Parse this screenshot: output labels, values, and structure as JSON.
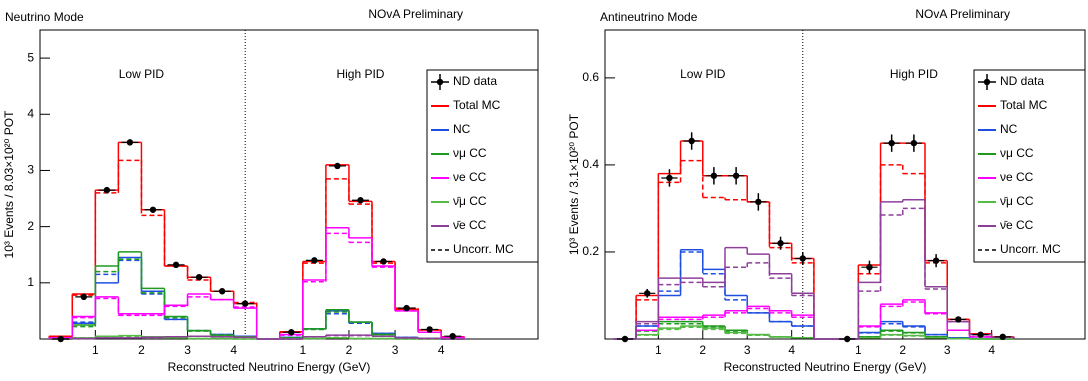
{
  "chart_data": [
    {
      "type": "histogram",
      "title": "Neutrino Mode",
      "annotation": "NOvA Preliminary",
      "region_labels": [
        "Low PID",
        "High PID"
      ],
      "x_label": "Reconstructed Neutrino Energy (GeV)",
      "y_label": "10³ Events / 8.03×10²⁰ POT",
      "bins": [
        0,
        0.5,
        1,
        1.5,
        2,
        2.5,
        3,
        3.5,
        4,
        4.5,
        5,
        5.5,
        6,
        6.5,
        7,
        7.5,
        8,
        8.5,
        9
      ],
      "xlim": [
        -0.2,
        10.6
      ],
      "xticks": [
        1,
        2,
        3,
        4,
        {
          "value": 5.5,
          "label": "1"
        },
        {
          "value": 6.5,
          "label": "2"
        },
        {
          "value": 7.5,
          "label": "3"
        },
        {
          "value": 8.5,
          "label": "4"
        }
      ],
      "ylim": [
        0,
        5.5
      ],
      "yticks": [
        1,
        2,
        3,
        4,
        5
      ],
      "legend": "right",
      "uncorrected_name": "Uncorr. MC",
      "series": [
        {
          "name": "ND data",
          "color": "#000000",
          "style": "points",
          "values": [
            0,
            0.75,
            2.65,
            3.5,
            2.3,
            1.32,
            1.1,
            0.85,
            0.63,
            null,
            0.12,
            1.4,
            3.08,
            2.47,
            1.38,
            0.55,
            0.17,
            0.05
          ]
        },
        {
          "name": "Total MC",
          "color": "#ff0000",
          "values": [
            0.05,
            0.8,
            2.65,
            3.5,
            2.3,
            1.3,
            1.1,
            0.85,
            0.63,
            0,
            0.13,
            1.38,
            3.1,
            2.45,
            1.38,
            0.53,
            0.16,
            0.04
          ],
          "uncorrected": [
            0.05,
            0.78,
            2.6,
            3.18,
            2.2,
            1.3,
            1.05,
            0.85,
            0.65,
            0,
            0.12,
            1.35,
            2.85,
            2.4,
            1.35,
            0.55,
            0.16,
            0.04
          ]
        },
        {
          "name": "NC",
          "color": "#1f4fe0",
          "values": [
            0.02,
            0.28,
            1.0,
            1.45,
            0.85,
            0.35,
            0.15,
            0.08,
            0.05,
            0,
            0.03,
            0.18,
            0.5,
            0.3,
            0.1,
            0.03,
            0.01,
            0
          ],
          "uncorrected": [
            0.02,
            0.3,
            1.15,
            1.4,
            0.8,
            0.35,
            0.15,
            0.08,
            0.05,
            0,
            0.03,
            0.18,
            0.45,
            0.28,
            0.1,
            0.03,
            0.01,
            0
          ]
        },
        {
          "name": "νμ CC",
          "color": "#1e9a1e",
          "values": [
            0.01,
            0.25,
            1.3,
            1.55,
            0.9,
            0.4,
            0.15,
            0.07,
            0.04,
            0,
            0.02,
            0.18,
            0.52,
            0.3,
            0.08,
            0.02,
            0.01,
            0
          ],
          "uncorrected": [
            0.01,
            0.22,
            1.2,
            1.42,
            0.82,
            0.38,
            0.14,
            0.07,
            0.04,
            0,
            0.02,
            0.17,
            0.48,
            0.3,
            0.08,
            0.02,
            0.01,
            0
          ]
        },
        {
          "name": "νe CC",
          "color": "#ff00ff",
          "values": [
            0.02,
            0.4,
            0.75,
            0.45,
            0.45,
            0.6,
            0.8,
            0.7,
            0.55,
            0,
            0.08,
            1.05,
            1.98,
            1.8,
            1.3,
            0.5,
            0.12,
            0.03
          ],
          "uncorrected": [
            0.02,
            0.38,
            0.72,
            0.42,
            0.42,
            0.58,
            0.75,
            0.7,
            0.57,
            0,
            0.07,
            1.02,
            1.88,
            1.72,
            1.28,
            0.5,
            0.12,
            0.03
          ]
        },
        {
          "name": "ν̄μ CC",
          "color": "#55bb44",
          "values": [
            0,
            0.02,
            0.05,
            0.06,
            0.04,
            0.02,
            0.01,
            0.01,
            0,
            0,
            0,
            0.01,
            0.02,
            0.01,
            0.01,
            0,
            0,
            0
          ],
          "uncorrected": [
            0,
            0.02,
            0.05,
            0.05,
            0.04,
            0.02,
            0.01,
            0.01,
            0,
            0,
            0,
            0.01,
            0.02,
            0.01,
            0.01,
            0,
            0,
            0
          ]
        },
        {
          "name": "ν̄e CC",
          "color": "#8e3f9a",
          "values": [
            0,
            0.01,
            0.02,
            0.02,
            0.03,
            0.04,
            0.05,
            0.04,
            0.03,
            0,
            0,
            0.04,
            0.07,
            0.07,
            0.05,
            0.02,
            0.01,
            0
          ],
          "uncorrected": [
            0,
            0.01,
            0.02,
            0.02,
            0.03,
            0.04,
            0.05,
            0.04,
            0.03,
            0,
            0,
            0.04,
            0.06,
            0.06,
            0.05,
            0.02,
            0.01,
            0
          ]
        }
      ]
    },
    {
      "type": "histogram",
      "title": "Antineutrino Mode",
      "annotation": "NOvA Preliminary",
      "region_labels": [
        "Low PID",
        "High PID"
      ],
      "x_label": "Reconstructed Neutrino Energy (GeV)",
      "y_label": "10³ Events / 3.1×10²⁰ POT",
      "bins": [
        0,
        0.5,
        1,
        1.5,
        2,
        2.5,
        3,
        3.5,
        4,
        4.5,
        5,
        5.5,
        6,
        6.5,
        7,
        7.5,
        8,
        8.5,
        9
      ],
      "xlim": [
        -0.2,
        10.6
      ],
      "xticks": [
        1,
        2,
        3,
        4,
        {
          "value": 5.5,
          "label": "1"
        },
        {
          "value": 6.5,
          "label": "2"
        },
        {
          "value": 7.5,
          "label": "3"
        },
        {
          "value": 8.5,
          "label": "4"
        }
      ],
      "ylim": [
        0,
        0.71
      ],
      "yticks": [
        0.2,
        0.4,
        0.6
      ],
      "legend": "right",
      "uncorrected_name": "Uncorr. MC",
      "series": [
        {
          "name": "ND data",
          "color": "#000000",
          "style": "points",
          "values": [
            0,
            0.105,
            0.37,
            0.455,
            0.375,
            0.375,
            0.315,
            0.22,
            0.185,
            null,
            0,
            0.165,
            0.45,
            0.45,
            0.18,
            0.045,
            0.01,
            0.005
          ],
          "errors": [
            0,
            0.01,
            0.02,
            0.02,
            0.02,
            0.02,
            0.02,
            0.015,
            0.015,
            null,
            0,
            0.015,
            0.02,
            0.02,
            0.015,
            0.005,
            0.002,
            0.001
          ]
        },
        {
          "name": "Total MC",
          "color": "#ff0000",
          "values": [
            0,
            0.1,
            0.38,
            0.455,
            0.375,
            0.375,
            0.315,
            0.22,
            0.185,
            0,
            0,
            0.17,
            0.45,
            0.45,
            0.18,
            0.045,
            0.012,
            0.005
          ],
          "uncorrected": [
            0,
            0.09,
            0.36,
            0.41,
            0.325,
            0.32,
            0.315,
            0.21,
            0.175,
            0,
            0,
            0.15,
            0.4,
            0.38,
            0.175,
            0.045,
            0.012,
            0.005
          ]
        },
        {
          "name": "NC",
          "color": "#1f4fe0",
          "values": [
            0,
            0.03,
            0.1,
            0.205,
            0.16,
            0.1,
            0.06,
            0.04,
            0.03,
            0,
            0,
            0.015,
            0.04,
            0.03,
            0.01,
            0.003,
            0.001,
            0
          ],
          "uncorrected": [
            0,
            0.03,
            0.11,
            0.2,
            0.15,
            0.09,
            0.06,
            0.04,
            0.03,
            0,
            0,
            0.014,
            0.035,
            0.028,
            0.01,
            0.003,
            0.001,
            0
          ]
        },
        {
          "name": "νμ CC",
          "color": "#1e9a1e",
          "values": [
            0,
            0.02,
            0.04,
            0.04,
            0.03,
            0.02,
            0.01,
            0.005,
            0.003,
            0,
            0,
            0.005,
            0.02,
            0.015,
            0.005,
            0.001,
            0,
            0
          ],
          "uncorrected": [
            0,
            0.018,
            0.035,
            0.035,
            0.027,
            0.018,
            0.009,
            0.005,
            0.003,
            0,
            0,
            0.005,
            0.018,
            0.014,
            0.005,
            0.001,
            0,
            0
          ]
        },
        {
          "name": "νe CC",
          "color": "#ff00ff",
          "values": [
            0,
            0.02,
            0.05,
            0.05,
            0.055,
            0.065,
            0.075,
            0.065,
            0.055,
            0,
            0,
            0.03,
            0.08,
            0.09,
            0.06,
            0.02,
            0.005,
            0.002
          ],
          "uncorrected": [
            0,
            0.02,
            0.045,
            0.045,
            0.05,
            0.06,
            0.07,
            0.06,
            0.05,
            0,
            0,
            0.028,
            0.075,
            0.085,
            0.058,
            0.02,
            0.005,
            0.002
          ]
        },
        {
          "name": "ν̄μ CC",
          "color": "#55bb44",
          "values": [
            0,
            0.01,
            0.025,
            0.03,
            0.025,
            0.015,
            0.01,
            0.005,
            0.003,
            0,
            0,
            0.003,
            0.01,
            0.008,
            0.003,
            0.001,
            0,
            0
          ],
          "uncorrected": [
            0,
            0.009,
            0.022,
            0.027,
            0.022,
            0.013,
            0.009,
            0.005,
            0.003,
            0,
            0,
            0.003,
            0.009,
            0.007,
            0.003,
            0.001,
            0,
            0
          ]
        },
        {
          "name": "ν̄e CC",
          "color": "#8e3f9a",
          "values": [
            0,
            0.04,
            0.14,
            0.14,
            0.13,
            0.21,
            0.195,
            0.15,
            0.105,
            0,
            0,
            0.13,
            0.315,
            0.32,
            0.12,
            0.04,
            0.01,
            0.004
          ],
          "uncorrected": [
            0,
            0.035,
            0.125,
            0.13,
            0.12,
            0.165,
            0.175,
            0.14,
            0.1,
            0,
            0,
            0.11,
            0.285,
            0.3,
            0.115,
            0.04,
            0.01,
            0.004
          ]
        }
      ]
    }
  ]
}
